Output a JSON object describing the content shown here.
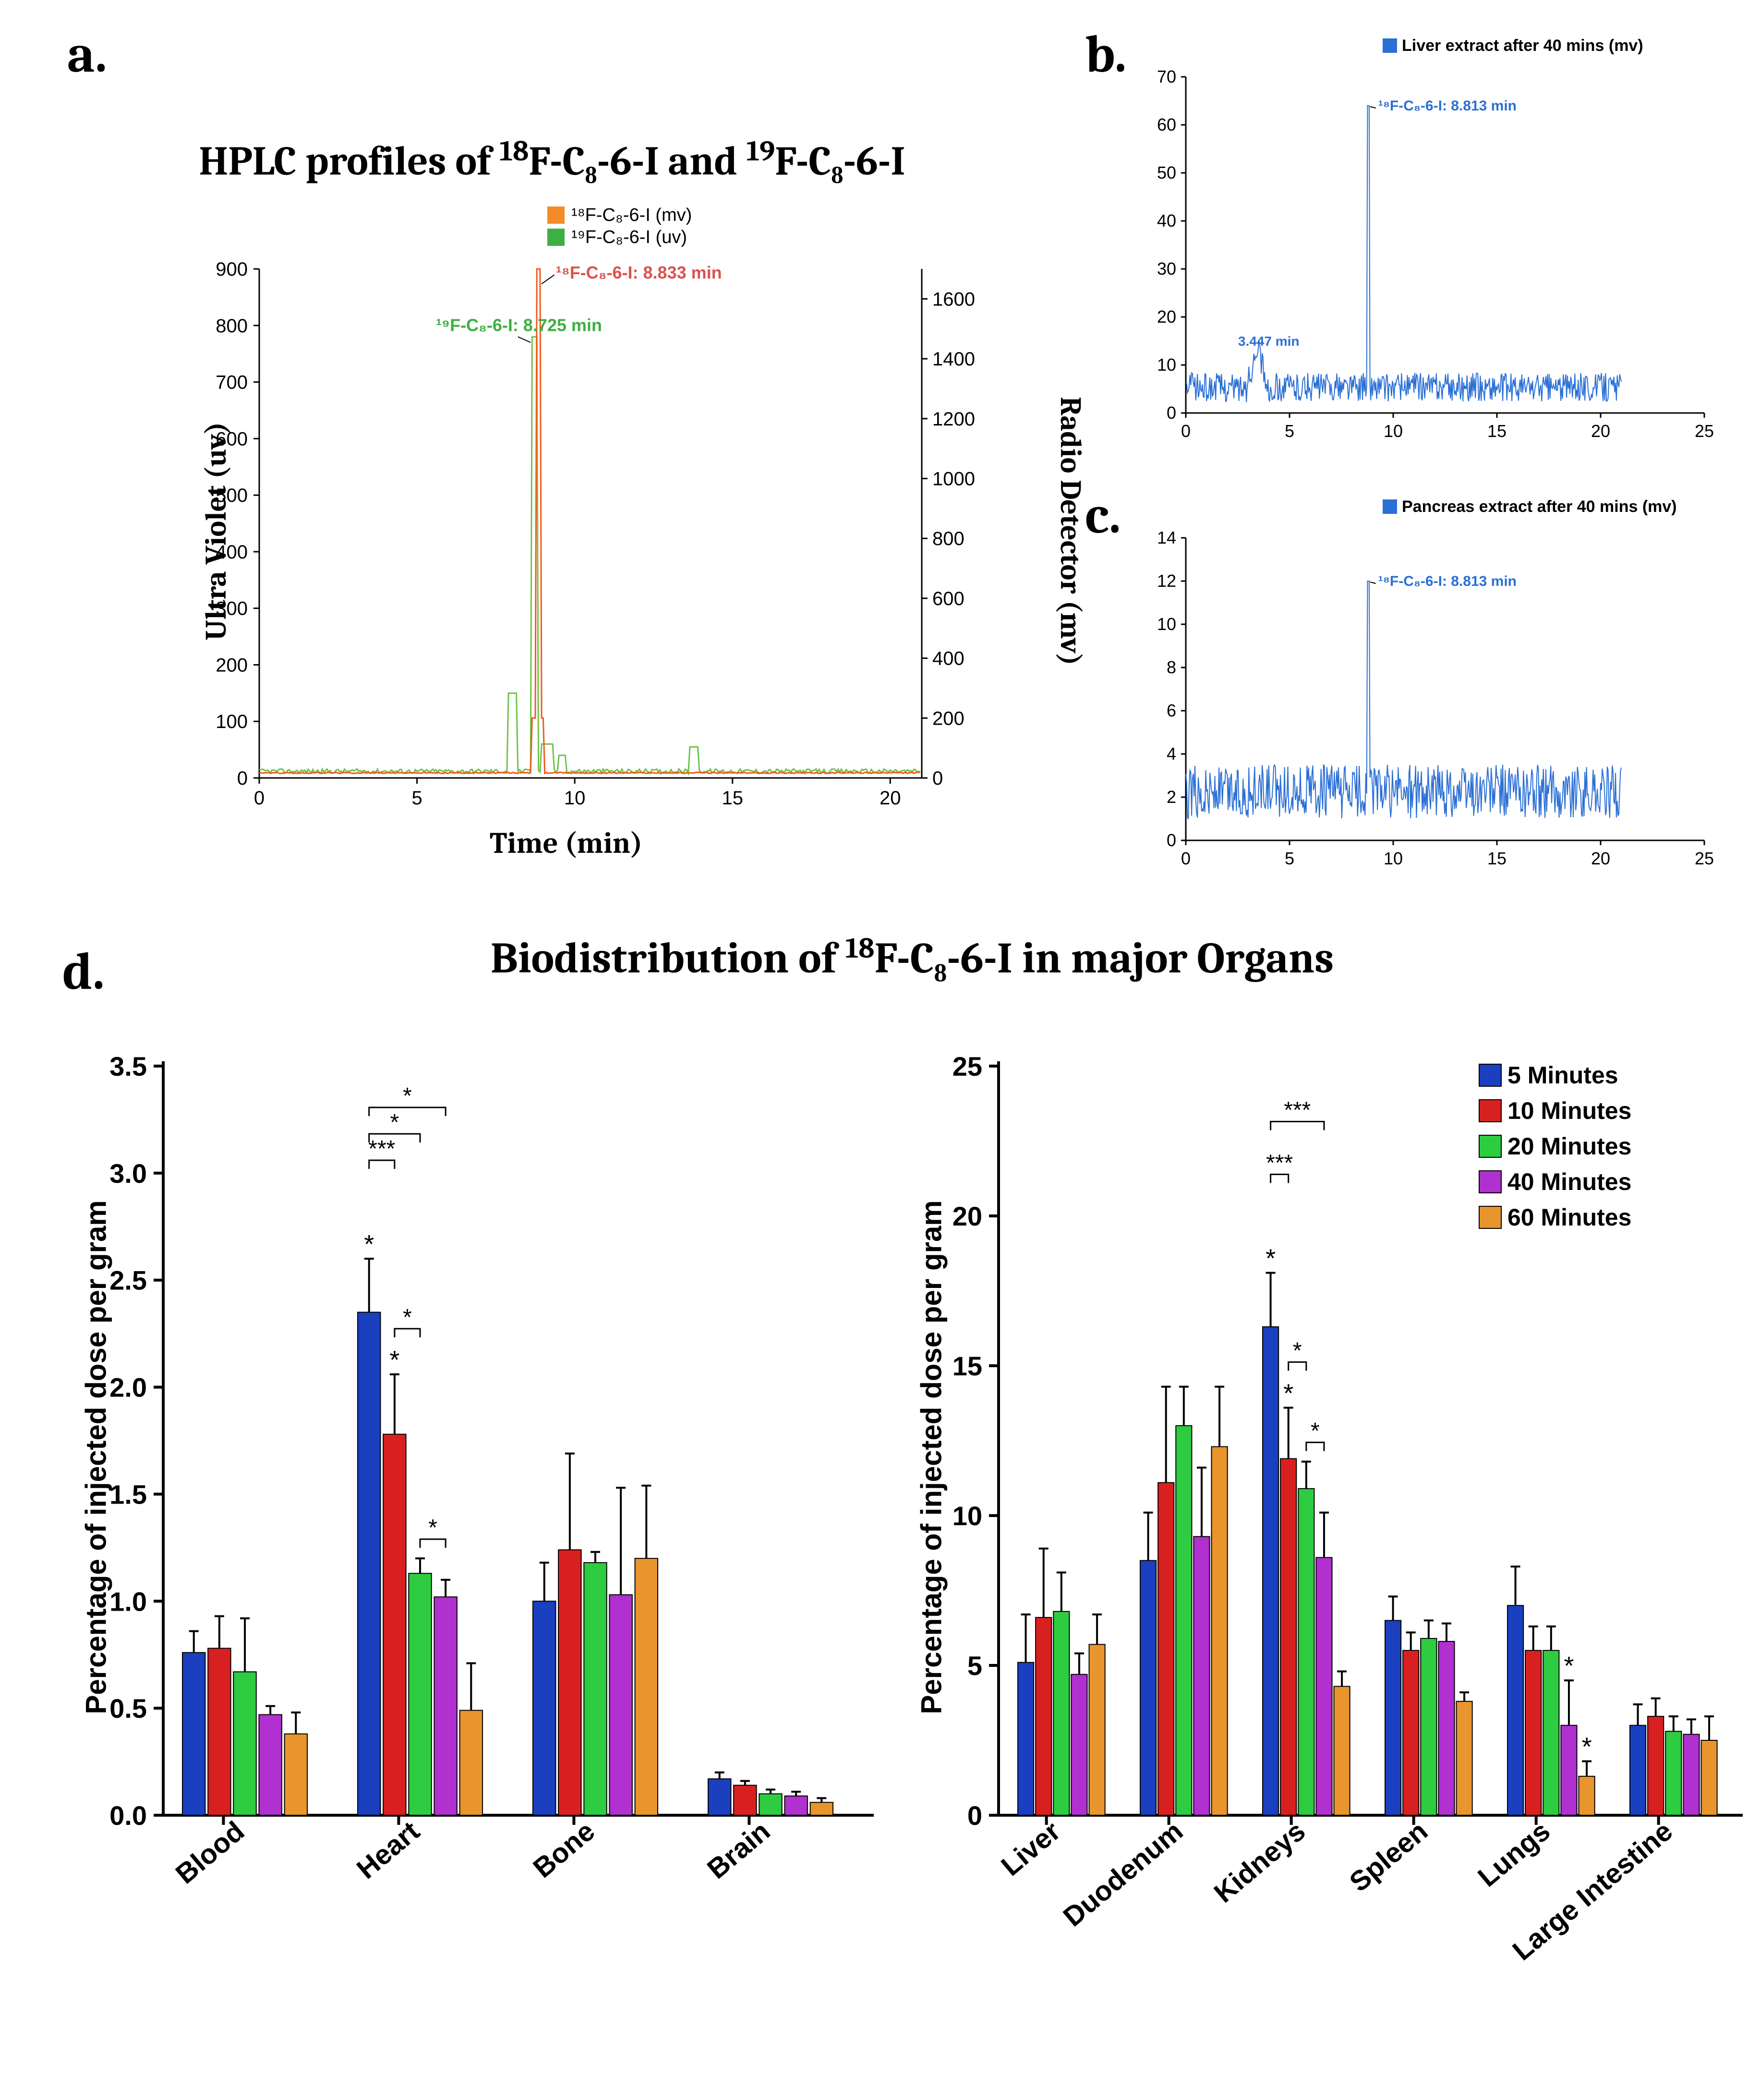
{
  "labels": {
    "a": "a.",
    "b": "b.",
    "c": "c.",
    "d": "d."
  },
  "panelA": {
    "title_pre": "HPLC profiles of ",
    "compound1_sup": "18",
    "compound1": "F-C₈-6-I and ",
    "compound2_sup": "19",
    "compound2": "F-C₈-6-I",
    "legend1_color": "#f28c28",
    "legend1_text": "¹⁸F-C₈-6-I (mv)",
    "legend2_color": "#3cb043",
    "legend2_text": "¹⁹F-C₈-6-I (uv)",
    "x_label": "Time (min)",
    "y_left_label": "Ultra Violet (uv)",
    "y_right_label": "Radio Detector (mv)",
    "x_ticks": [
      0,
      5,
      10,
      15,
      20
    ],
    "y_left_ticks": [
      0,
      100,
      200,
      300,
      400,
      500,
      600,
      700,
      800,
      900
    ],
    "y_right_ticks": [
      0,
      200,
      400,
      600,
      800,
      1000,
      1200,
      1400,
      1600
    ],
    "anno1_text": "¹⁸F-C₈-6-I: 8.833 min",
    "anno1_color": "#d9534f",
    "anno2_text": "¹⁹F-C₈-6-I: 8.725 min",
    "anno2_color": "#3cb043",
    "peak_orange_x": 8.833,
    "peak_orange_y": 1700,
    "peak_green_x": 8.725,
    "peak_green_y": 780,
    "line_orange": "#f05a1a",
    "line_green": "#6fc24a"
  },
  "panelB": {
    "legend_color": "#2a6fd6",
    "legend_text": "Liver extract after 40 mins (mv)",
    "x_ticks": [
      0,
      5,
      10,
      15,
      20,
      25
    ],
    "y_ticks": [
      0,
      10,
      20,
      30,
      40,
      50,
      60,
      70
    ],
    "anno_main": "¹⁸F-C₈-6-I: 8.813 min",
    "anno_minor": "3.447 min",
    "peak_x": 8.813,
    "peak_y": 64,
    "minor_x": 3.447,
    "minor_y": 12,
    "line_color": "#2a6fd6"
  },
  "panelC": {
    "legend_color": "#2a6fd6",
    "legend_text": "Pancreas extract after 40 mins (mv)",
    "x_ticks": [
      0,
      5,
      10,
      15,
      20,
      25
    ],
    "y_ticks": [
      0,
      2,
      4,
      6,
      8,
      10,
      12,
      14
    ],
    "anno_main": "¹⁸F-C₈-6-I: 8.813 min",
    "peak_x": 8.813,
    "peak_y": 12,
    "line_color": "#2a6fd6"
  },
  "panelD": {
    "title_pre": "Biodistribution of ",
    "compound_sup": "18",
    "compound": "F-C₈-6-I in major Organs",
    "y_label": "Percentage of injected dose per gram",
    "time_legend": [
      {
        "label": "5 Minutes",
        "color": "#1a3fbf"
      },
      {
        "label": "10 Minutes",
        "color": "#d92020"
      },
      {
        "label": "20 Minutes",
        "color": "#2ecc40"
      },
      {
        "label": "40 Minutes",
        "color": "#b030d0"
      },
      {
        "label": "60 Minutes",
        "color": "#e8952e"
      }
    ],
    "chart1": {
      "ymax": 3.5,
      "y_ticks": [
        0,
        0.5,
        1.0,
        1.5,
        2.0,
        2.5,
        3.0,
        3.5
      ],
      "categories": [
        "Blood",
        "Heart",
        "Bone",
        "Brain"
      ],
      "data": {
        "Blood": {
          "values": [
            0.76,
            0.78,
            0.67,
            0.47,
            0.38
          ],
          "err": [
            0.1,
            0.15,
            0.25,
            0.04,
            0.1
          ]
        },
        "Heart": {
          "values": [
            2.35,
            1.78,
            1.13,
            1.02,
            0.49
          ],
          "err": [
            0.25,
            0.28,
            0.07,
            0.08,
            0.22
          ]
        },
        "Bone": {
          "values": [
            1.0,
            1.24,
            1.18,
            1.03,
            1.2
          ],
          "err": [
            0.18,
            0.45,
            0.05,
            0.5,
            0.34
          ]
        },
        "Brain": {
          "values": [
            0.17,
            0.14,
            0.1,
            0.09,
            0.06
          ],
          "err": [
            0.03,
            0.02,
            0.02,
            0.02,
            0.02
          ]
        }
      },
      "sig": [
        {
          "group": "Heart",
          "from": 0,
          "to": 1,
          "level": 3,
          "text": "***"
        },
        {
          "group": "Heart",
          "from": 1,
          "to": 2,
          "level": 1,
          "text": "*"
        },
        {
          "group": "Heart",
          "from": 2,
          "to": 3,
          "level": 0,
          "text": "*"
        },
        {
          "group": "Heart",
          "from": 0,
          "to": 2,
          "level": 4,
          "text": "*"
        },
        {
          "group": "Heart",
          "from": 0,
          "to": 3,
          "level": 5,
          "text": "*"
        }
      ],
      "star_on_bar": [
        {
          "group": "Heart",
          "idx": 0
        },
        {
          "group": "Heart",
          "idx": 1
        }
      ]
    },
    "chart2": {
      "ymax": 25,
      "y_ticks": [
        0,
        5,
        10,
        15,
        20,
        25
      ],
      "categories": [
        "Liver",
        "Duodenum",
        "Kidneys",
        "Spleen",
        "Lungs",
        "Large Intestine"
      ],
      "data": {
        "Liver": {
          "values": [
            5.1,
            6.6,
            6.8,
            4.7,
            5.7
          ],
          "err": [
            1.6,
            2.3,
            1.3,
            0.7,
            1.0
          ]
        },
        "Duodenum": {
          "values": [
            8.5,
            11.1,
            13.0,
            9.3,
            12.3
          ],
          "err": [
            1.6,
            3.2,
            1.3,
            2.3,
            2.0
          ]
        },
        "Kidneys": {
          "values": [
            16.3,
            11.9,
            10.9,
            8.6,
            4.3
          ],
          "err": [
            1.8,
            1.7,
            0.9,
            1.5,
            0.5
          ]
        },
        "Spleen": {
          "values": [
            6.5,
            5.5,
            5.9,
            5.8,
            3.8
          ],
          "err": [
            0.8,
            0.6,
            0.6,
            0.6,
            0.3
          ]
        },
        "Lungs": {
          "values": [
            7.0,
            5.5,
            5.5,
            3.0,
            1.3
          ],
          "err": [
            1.3,
            0.8,
            0.8,
            1.5,
            0.5
          ]
        },
        "Large Intestine": {
          "values": [
            3.0,
            3.3,
            2.8,
            2.7,
            2.5
          ],
          "err": [
            0.7,
            0.6,
            0.5,
            0.5,
            0.8
          ]
        }
      },
      "sig": [
        {
          "group": "Kidneys",
          "from": 0,
          "to": 1,
          "level": 3,
          "text": "***"
        },
        {
          "group": "Kidneys",
          "from": 1,
          "to": 2,
          "level": 1,
          "text": "*"
        },
        {
          "group": "Kidneys",
          "from": 2,
          "to": 3,
          "level": 0,
          "text": "*"
        },
        {
          "group": "Kidneys",
          "from": 0,
          "to": 3,
          "level": 5,
          "text": "***"
        }
      ],
      "star_on_bar": [
        {
          "group": "Kidneys",
          "idx": 0
        },
        {
          "group": "Kidneys",
          "idx": 1
        },
        {
          "group": "Lungs",
          "idx": 3
        },
        {
          "group": "Lungs",
          "idx": 4
        }
      ]
    }
  }
}
